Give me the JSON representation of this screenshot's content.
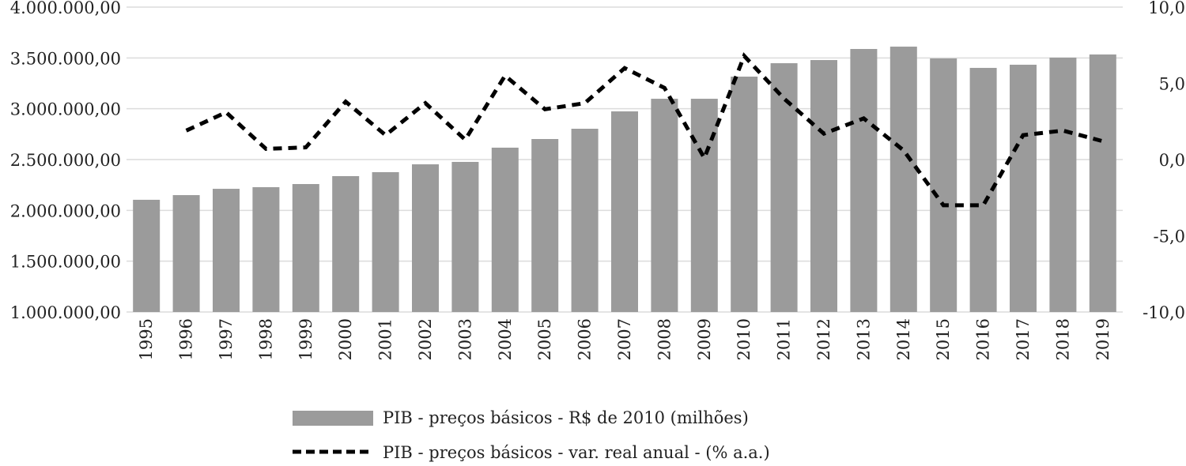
{
  "chart_data": {
    "type": "bar+line",
    "title": "",
    "categories": [
      "1995",
      "1996",
      "1997",
      "1998",
      "1999",
      "2000",
      "2001",
      "2002",
      "2003",
      "2004",
      "2005",
      "2006",
      "2007",
      "2008",
      "2009",
      "2010",
      "2011",
      "2012",
      "2013",
      "2014",
      "2015",
      "2016",
      "2017",
      "2018",
      "2019"
    ],
    "left_axis": {
      "ylim": [
        1000000,
        4000000
      ],
      "ticks": [
        "1.000.000,00",
        "1.500.000,00",
        "2.000.000,00",
        "2.500.000,00",
        "3.000.000,00",
        "3.500.000,00",
        "4.000.000,00"
      ],
      "tick_values": [
        1000000,
        1500000,
        2000000,
        2500000,
        3000000,
        3500000,
        4000000
      ]
    },
    "right_axis": {
      "ylim": [
        -10,
        10
      ],
      "ticks": [
        "-10,0",
        "-5,0",
        "0,0",
        "5,0",
        "10,0"
      ],
      "tick_values": [
        -10,
        -5,
        0,
        5,
        10
      ]
    },
    "grid": true,
    "legend_position": "bottom",
    "series": [
      {
        "name": "PIB - preços básicos - R$ de 2010 (milhões)",
        "type": "bar",
        "axis": "left",
        "color": "#9b9b9b",
        "values": [
          2104000,
          2150000,
          2212000,
          2228000,
          2259000,
          2337000,
          2376000,
          2453000,
          2477000,
          2617000,
          2702000,
          2803000,
          2974000,
          3098000,
          3098000,
          3316000,
          3448000,
          3479000,
          3588000,
          3611000,
          3495000,
          3402000,
          3433000,
          3503000,
          3534000
        ]
      },
      {
        "name": "PIB - preços básicos - var. real anual - (% a.a.)",
        "type": "line",
        "style": "dashed",
        "axis": "right",
        "color": "#000000",
        "values": [
          null,
          1.9,
          3.1,
          0.7,
          0.8,
          3.8,
          1.6,
          3.7,
          1.3,
          5.5,
          3.3,
          3.7,
          6.0,
          4.7,
          0.1,
          6.8,
          4.0,
          1.7,
          2.7,
          0.6,
          -3.0,
          -3.0,
          1.6,
          1.9,
          1.2
        ]
      }
    ]
  }
}
